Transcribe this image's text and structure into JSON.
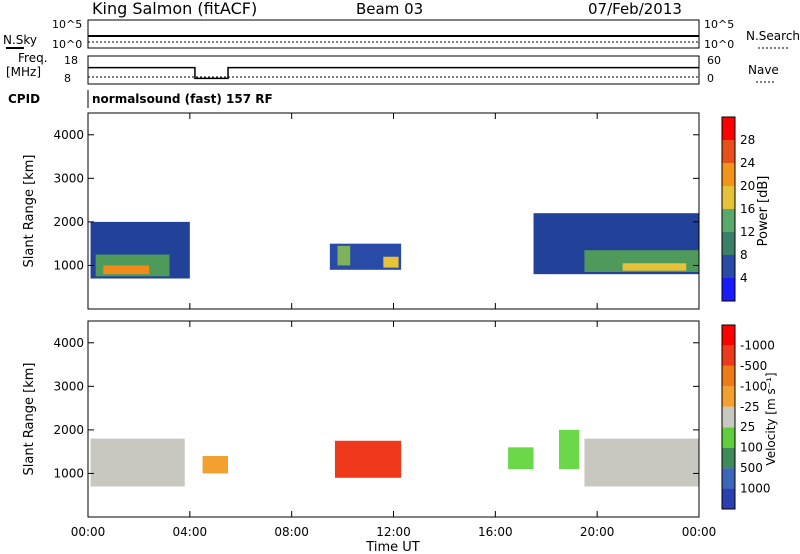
{
  "header": {
    "station": "King Salmon (fitACF)",
    "beam": "Beam 03",
    "date": "07/Feb/2013"
  },
  "status_panels": {
    "noise": {
      "left_label": "N.Sky",
      "right_label": "N.Search",
      "left_ticks": [
        "10^5",
        "10^0"
      ],
      "right_ticks": [
        "10^5",
        "10^0"
      ]
    },
    "freq": {
      "left_label_1": "Freq.",
      "left_label_2": "[MHz]",
      "right_label": "Nave",
      "left_ticks": [
        "18",
        "8"
      ],
      "right_ticks": [
        "60",
        "0"
      ],
      "freq_series": [
        {
          "start": 0.0,
          "end": 4.2,
          "value": 0.6
        },
        {
          "start": 4.2,
          "end": 5.5,
          "value": 0.15
        },
        {
          "start": 5.5,
          "end": 24.0,
          "value": 0.6
        }
      ]
    },
    "cpid": {
      "label": "CPID",
      "text": "normalsound (fast) 157 RF"
    }
  },
  "time_axis": {
    "label": "Time UT",
    "ticks": [
      "00:00",
      "04:00",
      "08:00",
      "12:00",
      "16:00",
      "20:00",
      "00:00"
    ]
  },
  "chart_data": [
    {
      "type": "heatmap",
      "title": "",
      "xlabel": "Time UT",
      "ylabel": "Slant Range [km]",
      "xlim": [
        0,
        24
      ],
      "ylim": [
        0,
        4500
      ],
      "yticks": [
        "1000",
        "2000",
        "3000",
        "4000"
      ],
      "colorbar": {
        "label": "Power [dB]",
        "ticks": [
          "4",
          "8",
          "12",
          "16",
          "20",
          "24",
          "28"
        ],
        "colors": [
          "#1a1aff",
          "#2a4aa8",
          "#3b7f6a",
          "#5aa86a",
          "#e6c23a",
          "#f3941a",
          "#e8501a",
          "#ff0000"
        ]
      },
      "regions": [
        {
          "t0": 0.1,
          "t1": 4.0,
          "r0": 700,
          "r1": 2000,
          "color": "#22429a"
        },
        {
          "t0": 0.3,
          "t1": 3.2,
          "r0": 750,
          "r1": 1250,
          "color": "#4f9a5a"
        },
        {
          "t0": 0.6,
          "t1": 2.4,
          "r0": 800,
          "r1": 1000,
          "color": "#f08a1a"
        },
        {
          "t0": 9.5,
          "t1": 12.3,
          "r0": 900,
          "r1": 1500,
          "color": "#2a4aa8"
        },
        {
          "t0": 9.8,
          "t1": 10.3,
          "r0": 1000,
          "r1": 1450,
          "color": "#7fb35a"
        },
        {
          "t0": 11.6,
          "t1": 12.2,
          "r0": 950,
          "r1": 1200,
          "color": "#e6c23a"
        },
        {
          "t0": 17.5,
          "t1": 24.0,
          "r0": 800,
          "r1": 2200,
          "color": "#22429a"
        },
        {
          "t0": 19.5,
          "t1": 24.0,
          "r0": 850,
          "r1": 1350,
          "color": "#4f9a5a"
        },
        {
          "t0": 21.0,
          "t1": 23.5,
          "r0": 880,
          "r1": 1050,
          "color": "#e6c23a"
        }
      ]
    },
    {
      "type": "heatmap",
      "title": "",
      "xlabel": "Time UT",
      "ylabel": "Slant Range [km]",
      "xlim": [
        0,
        24
      ],
      "ylim": [
        0,
        4500
      ],
      "yticks": [
        "1000",
        "2000",
        "3000",
        "4000"
      ],
      "colorbar": {
        "label": "Velocity [m s⁻¹]",
        "ticks": [
          "1000",
          "500",
          "100",
          "25",
          "-25",
          "-100",
          "-500",
          "-1000"
        ],
        "colors": [
          "#2a3fb0",
          "#3c66b8",
          "#3f8a5a",
          "#5ecf3a",
          "#c8c8c0",
          "#f2a030",
          "#f07a18",
          "#ee3a1a",
          "#ff0000"
        ]
      },
      "regions": [
        {
          "t0": 0.1,
          "t1": 3.8,
          "r0": 700,
          "r1": 1800,
          "color": "#c8c8c0"
        },
        {
          "t0": 4.5,
          "t1": 5.5,
          "r0": 1000,
          "r1": 1400,
          "color": "#f2a030"
        },
        {
          "t0": 9.7,
          "t1": 12.3,
          "r0": 900,
          "r1": 1750,
          "color": "#ee3a1a"
        },
        {
          "t0": 16.5,
          "t1": 17.5,
          "r0": 1100,
          "r1": 1600,
          "color": "#6bd84a"
        },
        {
          "t0": 18.5,
          "t1": 19.3,
          "r0": 1100,
          "r1": 2000,
          "color": "#6bd84a"
        },
        {
          "t0": 19.5,
          "t1": 24.0,
          "r0": 700,
          "r1": 1800,
          "color": "#c8c8c0"
        }
      ]
    }
  ]
}
